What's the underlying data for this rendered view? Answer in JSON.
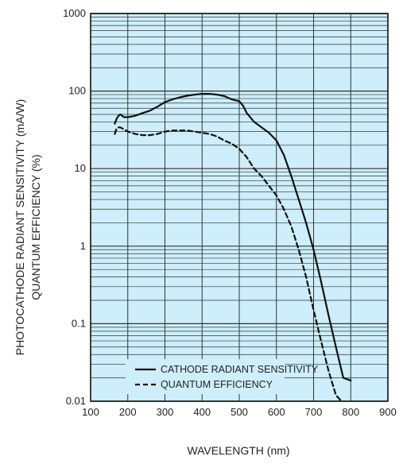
{
  "chart_data": {
    "type": "line",
    "title": "",
    "xlabel": "WAVELENGTH (nm)",
    "ylabel_lines": [
      "PHOTOCATHODE RADIANT SENSITIVITY (mA/W)",
      "QUANTUM EFFICIENCY (%)"
    ],
    "x_scale": "linear",
    "y_scale": "log",
    "xlim": [
      100,
      900
    ],
    "ylim": [
      0.01,
      1000
    ],
    "x_ticks": [
      100,
      200,
      300,
      400,
      500,
      600,
      700,
      800,
      900
    ],
    "y_ticks": [
      0.01,
      0.1,
      1,
      10,
      100,
      1000
    ],
    "x_tick_labels": [
      "100",
      "200",
      "300",
      "400",
      "500",
      "600",
      "700",
      "800",
      "900"
    ],
    "y_tick_labels": [
      "0.01",
      "0.1",
      "1",
      "10",
      "100",
      "1000"
    ],
    "grid": true,
    "plot_background": "#cdeefa",
    "grid_color": "#333333",
    "line_color": "#111111",
    "legend_position": "bottom-left",
    "series": [
      {
        "name": "CATHODE RADIANT SENSITIVITY",
        "style": "solid",
        "x": [
          165,
          170,
          175,
          180,
          185,
          190,
          200,
          220,
          240,
          260,
          280,
          300,
          320,
          340,
          360,
          380,
          400,
          420,
          440,
          460,
          480,
          500,
          510,
          520,
          540,
          560,
          580,
          600,
          620,
          640,
          660,
          680,
          700,
          720,
          740,
          760,
          780,
          800
        ],
        "y": [
          38,
          44,
          48,
          50,
          48,
          46,
          46,
          48,
          52,
          56,
          63,
          72,
          78,
          83,
          87,
          90,
          92,
          92,
          90,
          86,
          78,
          74,
          65,
          52,
          40,
          34,
          29,
          23,
          15,
          8,
          4,
          2,
          0.9,
          0.35,
          0.13,
          0.05,
          0.02,
          0.0185
        ]
      },
      {
        "name": "QUANTUM EFFICIENCY",
        "style": "dashed",
        "x": [
          165,
          170,
          175,
          180,
          185,
          190,
          200,
          220,
          240,
          260,
          280,
          300,
          320,
          340,
          360,
          380,
          400,
          420,
          440,
          460,
          480,
          500,
          520,
          540,
          560,
          580,
          600,
          620,
          640,
          660,
          680,
          700,
          720,
          740,
          760,
          775
        ],
        "y": [
          28,
          33,
          34,
          34,
          33,
          32,
          30,
          28,
          27,
          27,
          28,
          30,
          31,
          31,
          31,
          30,
          29,
          28,
          26,
          23,
          21,
          18,
          14,
          10,
          8,
          6,
          4.5,
          3,
          1.8,
          0.9,
          0.4,
          0.15,
          0.06,
          0.025,
          0.012,
          0.01
        ]
      }
    ]
  }
}
